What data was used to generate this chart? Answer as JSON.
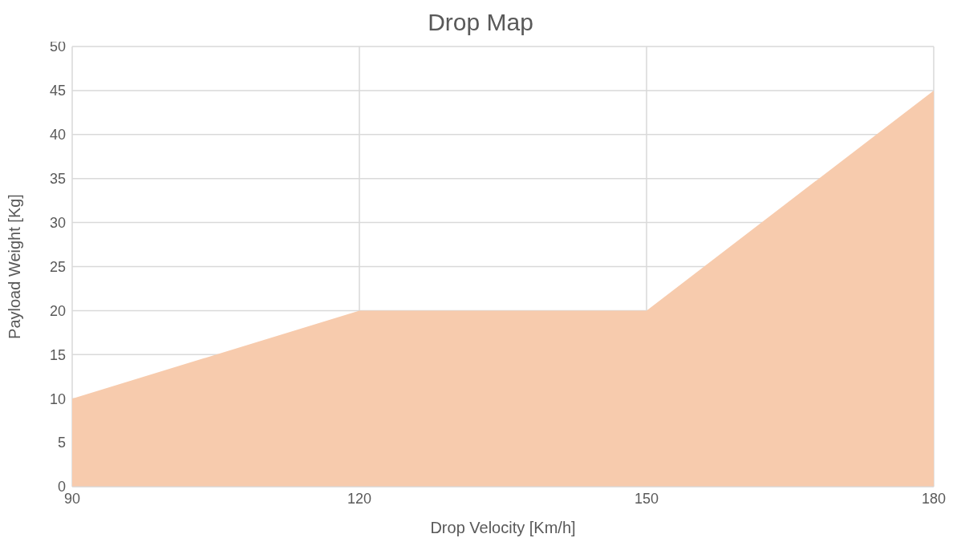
{
  "chart_data": {
    "type": "area",
    "title": "Drop Map",
    "xlabel": "Drop Velocity [Km/h]",
    "ylabel": "Payload Weight [Kg]",
    "x": [
      90,
      120,
      150,
      180
    ],
    "values": [
      10,
      20,
      20,
      45
    ],
    "color": "#f7cbad",
    "xlim": [
      90,
      180
    ],
    "xticks": [
      90,
      120,
      150,
      180
    ],
    "ylim": [
      0,
      50
    ],
    "yticks": [
      0,
      5,
      10,
      15,
      20,
      25,
      30,
      35,
      40,
      45,
      50
    ],
    "grid": true
  }
}
